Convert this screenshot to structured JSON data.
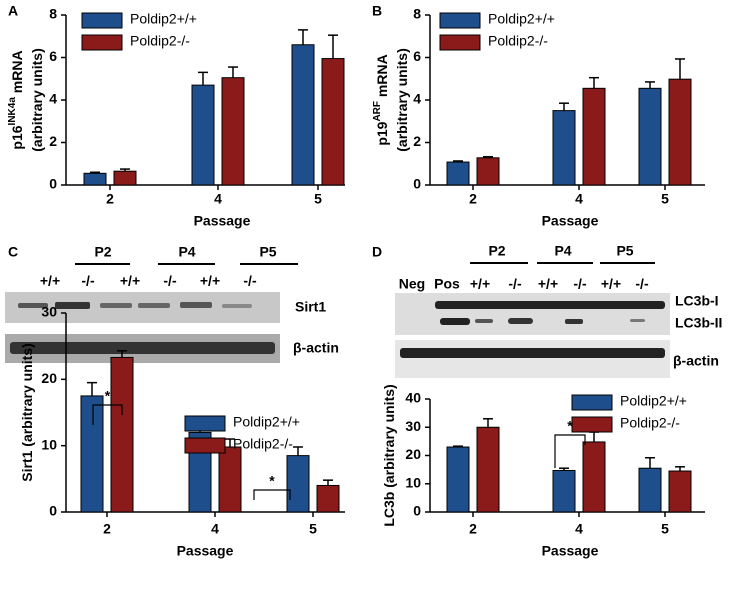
{
  "chart_data": [
    {
      "type": "bar",
      "panel_label": "A",
      "ylabel_lines": [
        [
          {
            "text": "p16"
          },
          {
            "text": "INK4a",
            "sup": true
          },
          {
            "text": " mRNA"
          }
        ],
        [
          {
            "text": "(arbitrary units)"
          }
        ]
      ],
      "xlabel": "Passage",
      "categories": [
        "2",
        "4",
        "5"
      ],
      "ylim": [
        0,
        8
      ],
      "yticks": [
        0,
        2,
        4,
        6,
        8
      ],
      "legend": "top-left",
      "series": [
        {
          "name": "Poldip2+/+",
          "color": "#1f4e8c",
          "values": [
            0.55,
            4.7,
            6.6
          ],
          "errors": [
            0.05,
            0.6,
            0.7
          ]
        },
        {
          "name": "Poldip2-/-",
          "color": "#8b1a1a",
          "values": [
            0.65,
            5.05,
            5.95
          ],
          "errors": [
            0.1,
            0.5,
            1.1
          ]
        }
      ]
    },
    {
      "type": "bar",
      "panel_label": "B",
      "ylabel_lines": [
        [
          {
            "text": "p19"
          },
          {
            "text": "ARF",
            "sup": true
          },
          {
            "text": " mRNA"
          }
        ],
        [
          {
            "text": "(arbitrary units)"
          }
        ]
      ],
      "xlabel": "Passage",
      "categories": [
        "2",
        "4",
        "5"
      ],
      "ylim": [
        0,
        8
      ],
      "yticks": [
        0,
        2,
        4,
        6,
        8
      ],
      "legend": "top-left",
      "series": [
        {
          "name": "Poldip2+/+",
          "color": "#1f4e8c",
          "values": [
            1.08,
            3.5,
            4.55
          ],
          "errors": [
            0.05,
            0.35,
            0.3
          ]
        },
        {
          "name": "Poldip2-/-",
          "color": "#8b1a1a",
          "values": [
            1.28,
            4.55,
            4.98
          ],
          "errors": [
            0.05,
            0.5,
            0.95
          ]
        }
      ]
    },
    {
      "type": "bar",
      "panel_label": "C",
      "ylabel_lines": [
        [
          {
            "text": "Sirt1 (arbitrary units)"
          }
        ]
      ],
      "xlabel": "Passage",
      "categories": [
        "2",
        "4",
        "5"
      ],
      "ylim": [
        0,
        30
      ],
      "yticks": [
        0,
        10,
        20,
        30
      ],
      "legend": "top-right",
      "annotations": [
        "*",
        "*"
      ],
      "series": [
        {
          "name": "Poldip2+/+",
          "color": "#1f4e8c",
          "values": [
            17.5,
            12,
            8.5
          ],
          "errors": [
            2,
            0.5,
            1.3
          ]
        },
        {
          "name": "Poldip2-/-",
          "color": "#8b1a1a",
          "values": [
            23.3,
            9.8,
            4
          ],
          "errors": [
            1,
            1.2,
            0.8
          ]
        }
      ]
    },
    {
      "type": "bar",
      "panel_label": "D",
      "ylabel_lines": [
        [
          {
            "text": "LC3b  (arbitrary units)"
          }
        ]
      ],
      "xlabel": "Passage",
      "categories": [
        "2",
        "4",
        "5"
      ],
      "ylim": [
        0,
        40
      ],
      "yticks": [
        0,
        10,
        20,
        30,
        40
      ],
      "legend": "top-right",
      "annotations": [
        "*"
      ],
      "series": [
        {
          "name": "Poldip2+/+",
          "color": "#1f4e8c",
          "values": [
            23,
            14.7,
            15.5
          ],
          "errors": [
            0.3,
            0.8,
            3.7
          ]
        },
        {
          "name": "Poldip2-/-",
          "color": "#8b1a1a",
          "values": [
            30,
            24.8,
            14.5
          ],
          "errors": [
            3,
            3.5,
            1.5
          ]
        }
      ]
    }
  ],
  "blots": [
    {
      "groups": [
        "P2",
        "P4",
        "P5"
      ],
      "genotypes": [
        "+/+",
        "-/-",
        "+/+",
        "-/-",
        "+/+",
        "-/-"
      ],
      "band_labels": [
        "Sirt1",
        "β-actin"
      ]
    },
    {
      "controls": [
        "Neg",
        "Pos"
      ],
      "groups": [
        "P2",
        "P4",
        "P5"
      ],
      "genotypes": [
        "+/+",
        "-/-",
        "+/+",
        "-/-",
        "+/+",
        "-/-"
      ],
      "band_labels": [
        "LC3b-I",
        "LC3b-II",
        "β-actin"
      ]
    }
  ]
}
